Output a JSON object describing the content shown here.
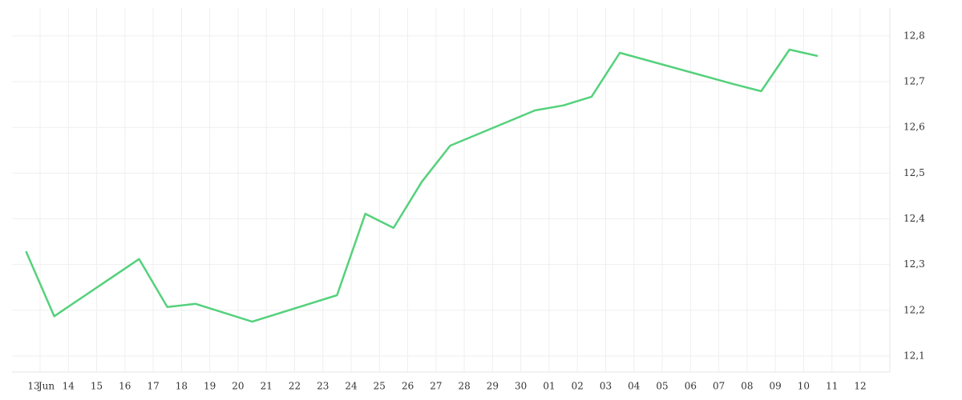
{
  "chart_data": {
    "type": "line",
    "categories": [
      "13",
      "14",
      "15",
      "16",
      "17",
      "18",
      "19",
      "20",
      "21",
      "22",
      "23",
      "24",
      "25",
      "26",
      "27",
      "28",
      "29",
      "30",
      "01",
      "02",
      "03",
      "04",
      "05",
      "06",
      "07",
      "08",
      "09",
      "10",
      "11",
      "12"
    ],
    "month_label": "Jun",
    "series": [
      {
        "color": "#55d17c",
        "x": [
          "13",
          "14",
          "17",
          "18",
          "19",
          "21",
          "24",
          "25",
          "26",
          "27",
          "28",
          "01",
          "02",
          "03",
          "04",
          "08",
          "09",
          "10",
          "11"
        ],
        "values": [
          12.329,
          12.187,
          12.312,
          12.207,
          12.214,
          12.175,
          12.233,
          12.411,
          12.38,
          12.481,
          12.56,
          12.637,
          12.648,
          12.667,
          12.763,
          12.695,
          12.679,
          12.77,
          12.756
        ]
      }
    ],
    "ylim": [
      12.065,
      12.861
    ],
    "yticks": [
      {
        "value": 12.1,
        "label": "12,1"
      },
      {
        "value": 12.2,
        "label": "12,2"
      },
      {
        "value": 12.3,
        "label": "12,3"
      },
      {
        "value": 12.4,
        "label": "12,4"
      },
      {
        "value": 12.5,
        "label": "12,5"
      },
      {
        "value": 12.6,
        "label": "12,6"
      },
      {
        "value": 12.7,
        "label": "12,7"
      },
      {
        "value": 12.8,
        "label": "12,8"
      }
    ],
    "grid": true
  }
}
